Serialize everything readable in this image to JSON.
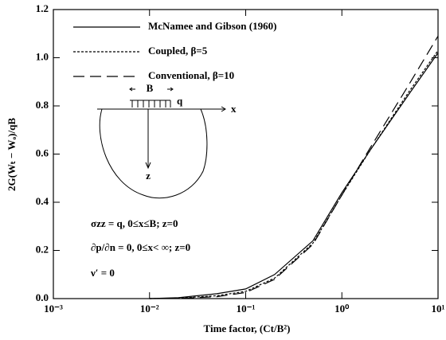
{
  "chart_data": {
    "type": "line",
    "xlabel": "Time factor, (Ct/B²)",
    "ylabel": "2G(Wₜ − Wₒ)/qB",
    "x_scale": "log",
    "xlim": [
      0.001,
      10
    ],
    "xticks": [
      {
        "value": 0.001,
        "label": "10⁻³"
      },
      {
        "value": 0.01,
        "label": "10⁻²"
      },
      {
        "value": 0.1,
        "label": "10⁻¹"
      },
      {
        "value": 1,
        "label": "10⁰"
      },
      {
        "value": 10,
        "label": "10¹"
      }
    ],
    "ylim": [
      0,
      1.2
    ],
    "yticks": [
      {
        "value": 0,
        "label": "0.0"
      },
      0.2,
      0.4,
      0.6,
      0.8,
      {
        "value": 1,
        "label": "1.0"
      },
      1.2
    ],
    "legend": "upper left",
    "x": [
      0.01,
      0.02,
      0.05,
      0.1,
      0.2,
      0.5,
      1,
      2,
      5,
      10
    ],
    "series": [
      {
        "name": "McNamee and Gibson (1960)",
        "color": "#000000",
        "dash": "solid",
        "values": [
          0,
          0.004,
          0.02,
          0.04,
          0.1,
          0.24,
          0.44,
          0.62,
          0.85,
          1.02
        ]
      },
      {
        "name": "Coupled, β=5",
        "color": "#000000",
        "dash": "short",
        "values": [
          0,
          0.002,
          0.012,
          0.03,
          0.085,
          0.23,
          0.43,
          0.62,
          0.86,
          1.03
        ]
      },
      {
        "name": "Conventional, β=10",
        "color": "#000000",
        "dash": "long",
        "values": [
          0,
          0.001,
          0.008,
          0.025,
          0.08,
          0.225,
          0.43,
          0.63,
          0.89,
          1.09
        ]
      }
    ],
    "annotations": [
      "σzz = q, 0≤x≤B; z=0",
      "∂p/∂n = 0, 0≤x< ∞;   z=0",
      "ν′ = 0"
    ],
    "inset_labels": {
      "width": "B",
      "load": "q",
      "x_axis": "x",
      "z_axis": "z"
    }
  }
}
